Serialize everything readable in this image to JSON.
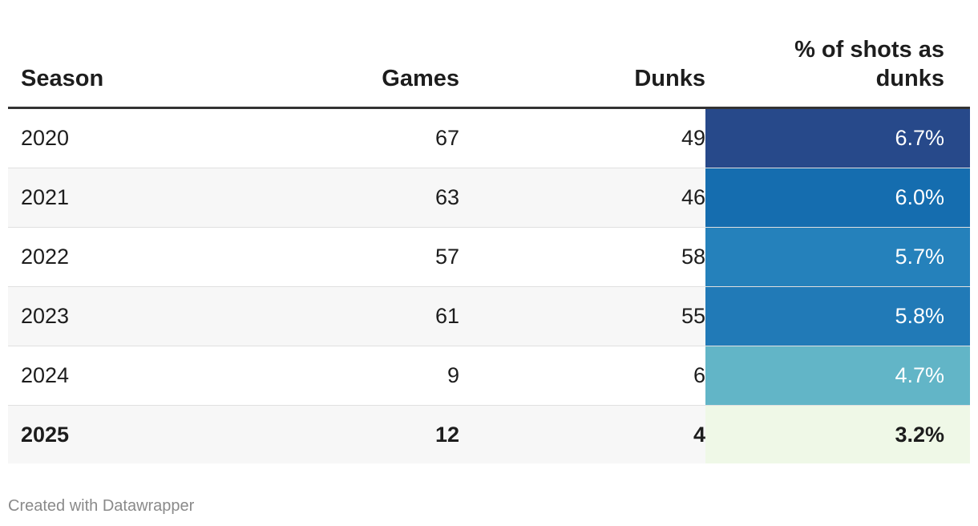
{
  "chart_data": {
    "type": "table",
    "columns": [
      "Season",
      "Games",
      "Dunks",
      "% of shots as dunks"
    ],
    "rows": [
      {
        "season": "2020",
        "games": "67",
        "dunks": "49",
        "pct": "6.7%",
        "color": "#27498a",
        "text_color": "#ffffff",
        "bold": false
      },
      {
        "season": "2021",
        "games": "63",
        "dunks": "46",
        "pct": "6.0%",
        "color": "#156daf",
        "text_color": "#ffffff",
        "bold": false
      },
      {
        "season": "2022",
        "games": "57",
        "dunks": "58",
        "pct": "5.7%",
        "color": "#2581bb",
        "text_color": "#ffffff",
        "bold": false
      },
      {
        "season": "2023",
        "games": "61",
        "dunks": "55",
        "pct": "5.8%",
        "color": "#217ab7",
        "text_color": "#ffffff",
        "bold": false
      },
      {
        "season": "2024",
        "games": "9",
        "dunks": "6",
        "pct": "4.7%",
        "color": "#62b5c7",
        "text_color": "#ffffff",
        "bold": false
      },
      {
        "season": "2025",
        "games": "12",
        "dunks": "4",
        "pct": "3.2%",
        "color": "#eff8e7",
        "text_color": "#1d1d1d",
        "bold": true
      }
    ]
  },
  "header": {
    "season": "Season",
    "games": "Games",
    "dunks": "Dunks",
    "pct_line1": "% of shots as",
    "pct_line2": "dunks"
  },
  "footer": {
    "credit": "Created with Datawrapper"
  }
}
